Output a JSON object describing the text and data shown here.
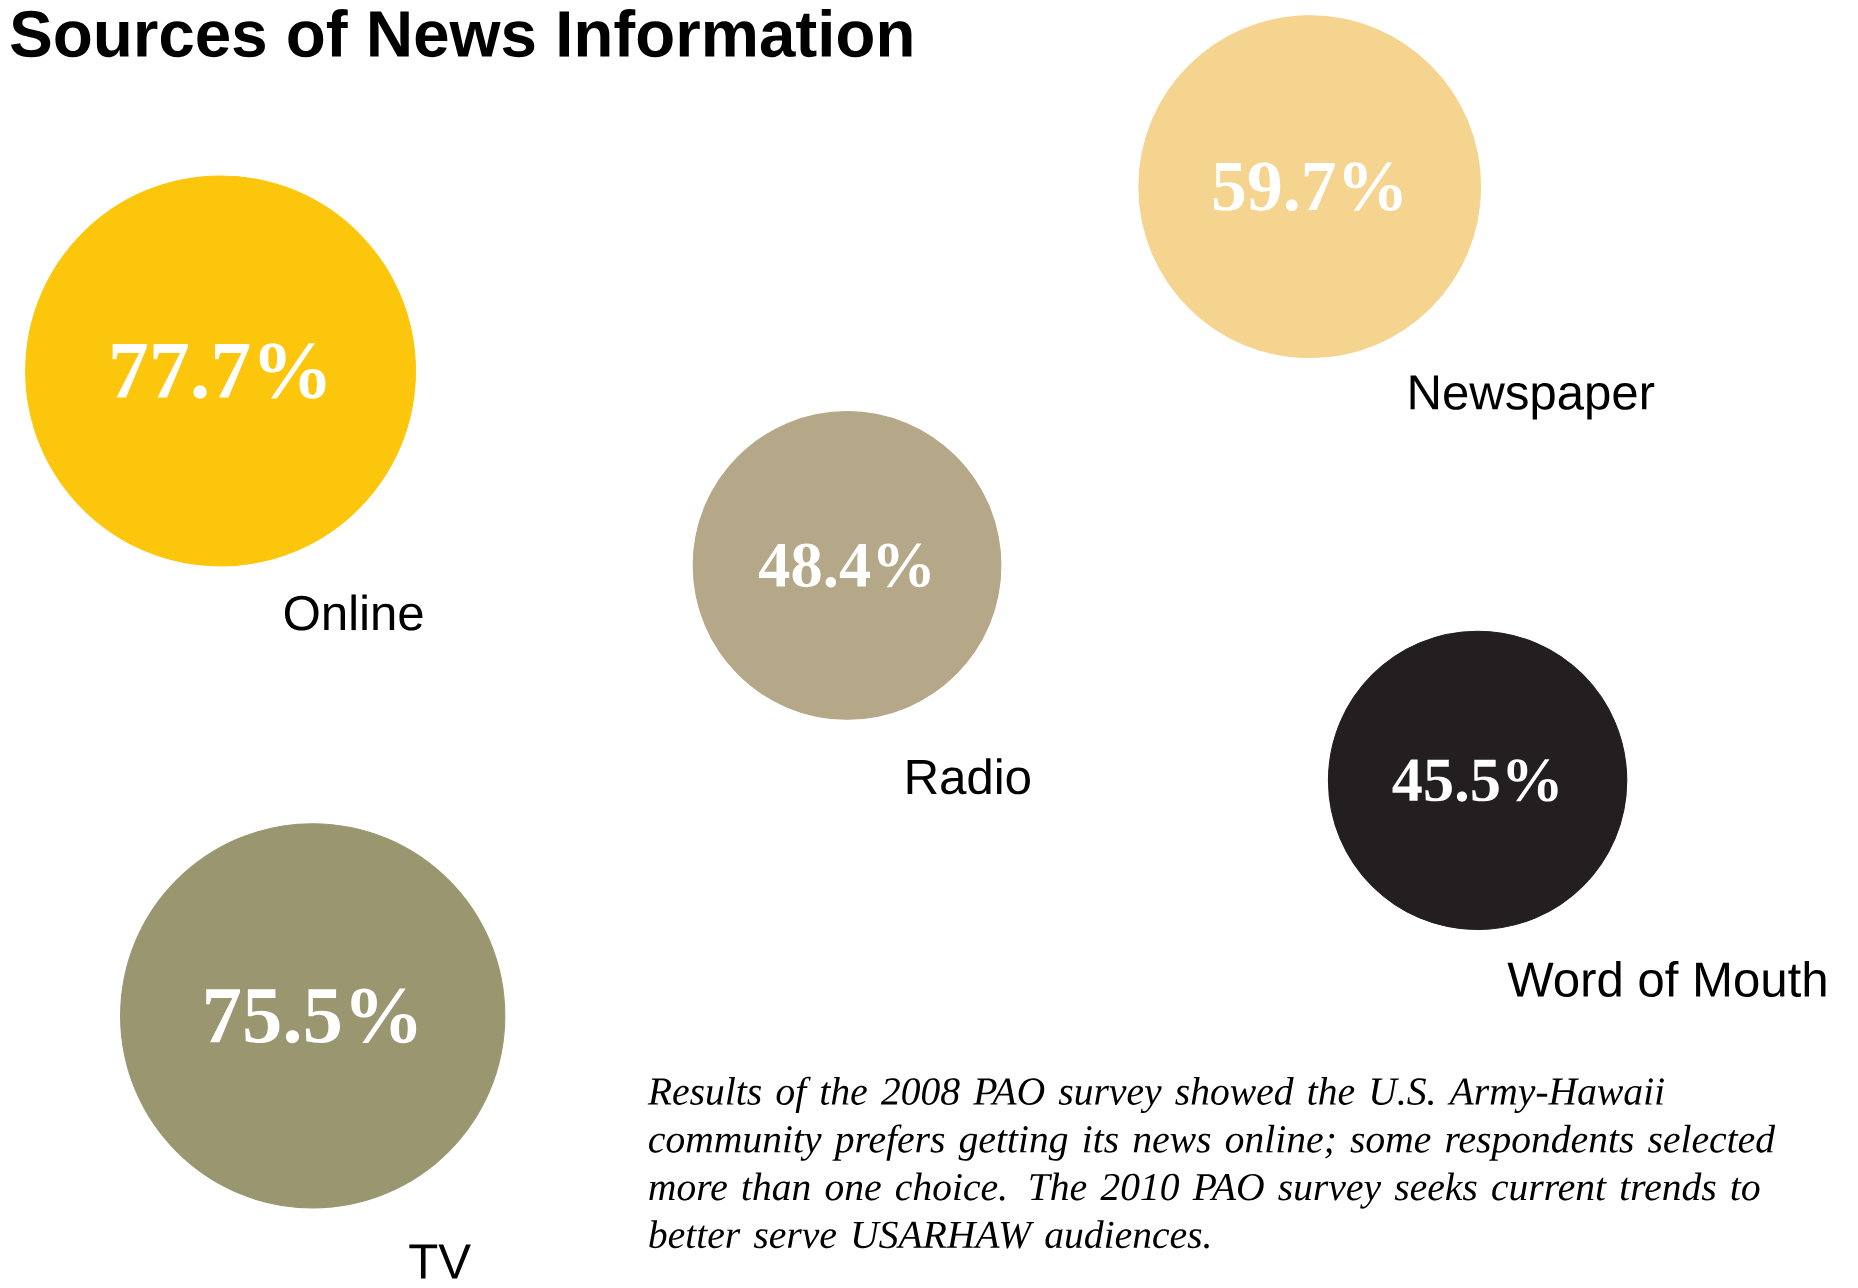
{
  "chart_data": {
    "type": "other",
    "title": "Sources of News Information",
    "categories": [
      "Online",
      "Newspaper",
      "Radio",
      "Word of Mouth",
      "TV"
    ],
    "values": [
      77.7,
      59.7,
      48.4,
      45.5,
      75.5
    ],
    "value_labels": [
      "77.7%",
      "59.7%",
      "48.4%",
      "45.5%",
      "75.5%"
    ],
    "colors": [
      "#fcc60c",
      "#f5d490",
      "#b5a888",
      "#231f20",
      "#9a9670"
    ],
    "annotations": [
      "Results of the 2008 PAO survey showed the U.S. Army-Hawaii community prefers getting its news online; some respondents selected more than one choice. The 2010 PAO survey seeks current trends to better serve USARHAW audiences."
    ]
  }
}
